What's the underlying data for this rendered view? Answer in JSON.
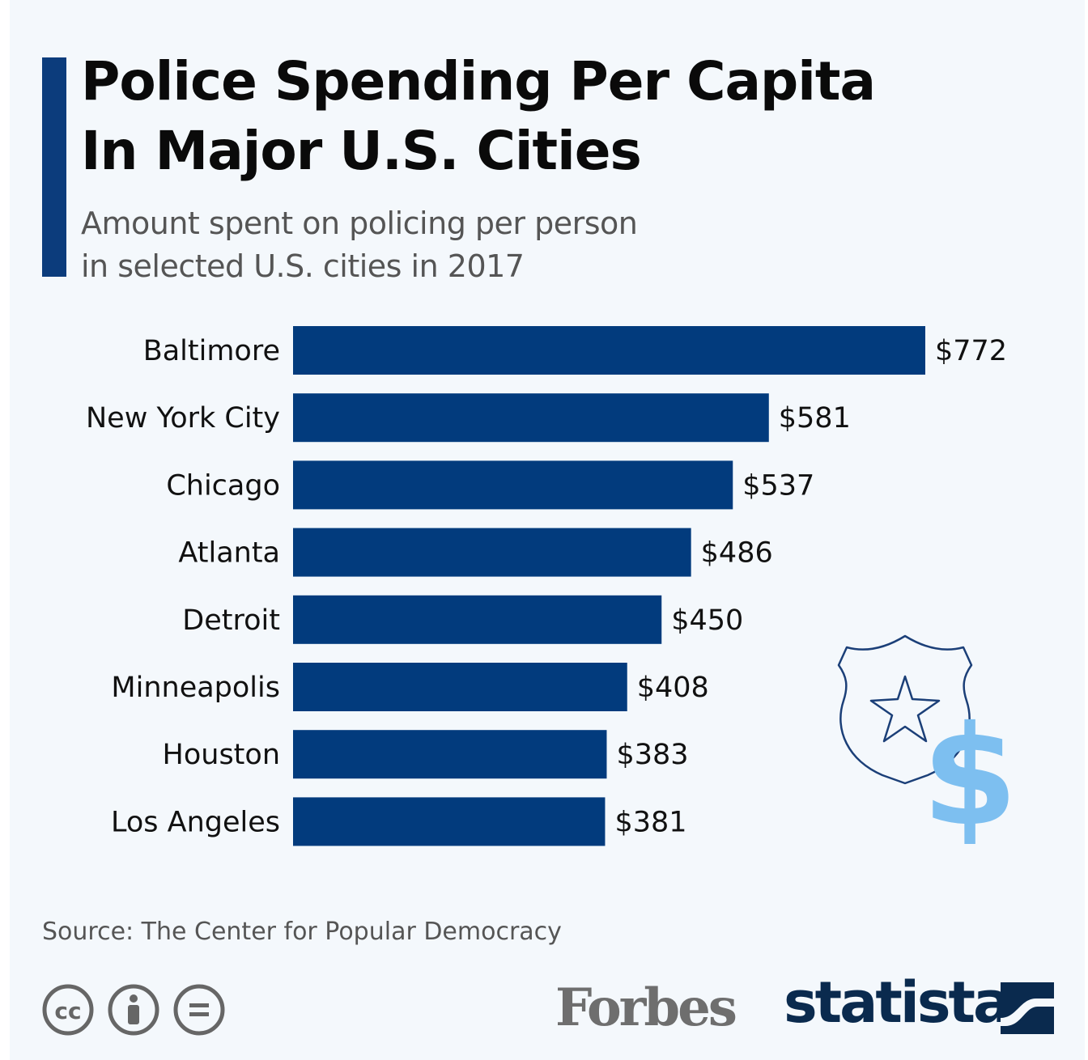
{
  "title_lines": [
    "Police Spending Per Capita",
    "In Major U.S. Cities"
  ],
  "subtitle_lines": [
    "Amount spent on policing per person",
    "in selected U.S. cities in 2017"
  ],
  "source": "Source: The Center for Popular Democracy",
  "brands": {
    "forbes": "Forbes",
    "statista": "statista"
  },
  "colors": {
    "bar": "#023b7d",
    "accent": "#0c3c7c",
    "icon_outline": "#1b3f78",
    "icon_dollar": "#7dbff0"
  },
  "icons": [
    "police-badge-icon",
    "star-icon",
    "dollar-icon",
    "cc-icon",
    "by-icon",
    "nd-icon",
    "statista-logo-icon"
  ],
  "chart_data": {
    "type": "bar",
    "orientation": "horizontal",
    "title": "Police Spending Per Capita In Major U.S. Cities",
    "subtitle": "Amount spent on policing per person in selected U.S. cities in 2017",
    "categories": [
      "Baltimore",
      "New York City",
      "Chicago",
      "Atlanta",
      "Detroit",
      "Minneapolis",
      "Houston",
      "Los Angeles"
    ],
    "values": [
      772,
      581,
      537,
      486,
      450,
      408,
      383,
      381
    ],
    "value_labels": [
      "$772",
      "$581",
      "$537",
      "$486",
      "$450",
      "$408",
      "$383",
      "$381"
    ],
    "xlabel": "",
    "ylabel": "",
    "xlim": [
      0,
      772
    ],
    "grid": false,
    "legend": "none"
  }
}
